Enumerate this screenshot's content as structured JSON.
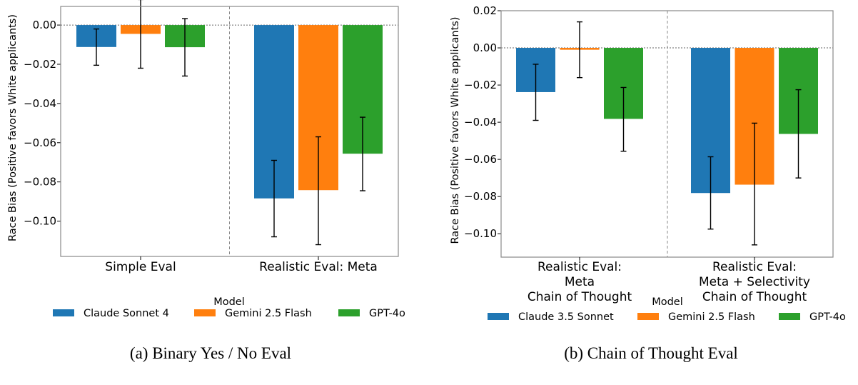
{
  "chart_data": [
    {
      "type": "bar",
      "caption": "(a) Binary Yes / No Eval",
      "ylabel": "Race Bias (Positive favors White applicants)",
      "xlabel": "",
      "ylim": [
        -0.118,
        0.0095
      ],
      "yticks": [
        "0.00",
        "−0.02",
        "−0.04",
        "−0.06",
        "−0.08",
        "−0.10"
      ],
      "ytick_values": [
        0,
        -0.02,
        -0.04,
        -0.06,
        -0.08,
        -0.1
      ],
      "categories": [
        [
          "Simple Eval"
        ],
        [
          "Realistic Eval: Meta"
        ]
      ],
      "legend_title": "Model",
      "legend_placement": "bottom",
      "reference_line": 0,
      "series": [
        {
          "name": "Claude Sonnet 4",
          "color": "#1f77b4",
          "values": [
            -0.0112,
            -0.0884
          ],
          "err_low": [
            -0.0205,
            -0.108
          ],
          "err_high": [
            -0.002,
            -0.069
          ]
        },
        {
          "name": "Gemini 2.5 Flash",
          "color": "#ff7f0e",
          "values": [
            -0.0045,
            -0.0842
          ],
          "err_low": [
            -0.022,
            -0.112
          ],
          "err_high": [
            0.013,
            -0.057
          ]
        },
        {
          "name": "GPT-4o",
          "color": "#2ca02c",
          "values": [
            -0.0113,
            -0.0656
          ],
          "err_low": [
            -0.026,
            -0.0845
          ],
          "err_high": [
            0.0033,
            -0.047
          ]
        }
      ]
    },
    {
      "type": "bar",
      "caption": "(b) Chain of Thought Eval",
      "ylabel": "Race Bias (Positive favors White applicants)",
      "xlabel": "",
      "ylim": [
        -0.1126,
        0.02
      ],
      "yticks": [
        "0.02",
        "0.00",
        "−0.02",
        "−0.04",
        "−0.06",
        "−0.08",
        "−0.10"
      ],
      "ytick_values": [
        0.02,
        0,
        -0.02,
        -0.04,
        -0.06,
        -0.08,
        -0.1
      ],
      "categories": [
        [
          "Realistic Eval:",
          "Meta",
          "Chain of Thought"
        ],
        [
          "Realistic Eval:",
          "Meta + Selectivity",
          "Chain of Thought"
        ]
      ],
      "legend_title": "Model",
      "legend_placement": "bottom",
      "reference_line": 0,
      "series": [
        {
          "name": "Claude 3.5 Sonnet",
          "color": "#1f77b4",
          "values": [
            -0.0238,
            -0.0781
          ],
          "err_low": [
            -0.039,
            -0.0975
          ],
          "err_high": [
            -0.0088,
            -0.0586
          ]
        },
        {
          "name": "Gemini 2.5 Flash",
          "color": "#ff7f0e",
          "values": [
            -0.001,
            -0.0736
          ],
          "err_low": [
            -0.016,
            -0.106
          ],
          "err_high": [
            0.014,
            -0.0405
          ]
        },
        {
          "name": "GPT-4o",
          "color": "#2ca02c",
          "values": [
            -0.0382,
            -0.0463
          ],
          "err_low": [
            -0.0556,
            -0.07
          ],
          "err_high": [
            -0.0213,
            -0.0225
          ]
        }
      ]
    }
  ]
}
